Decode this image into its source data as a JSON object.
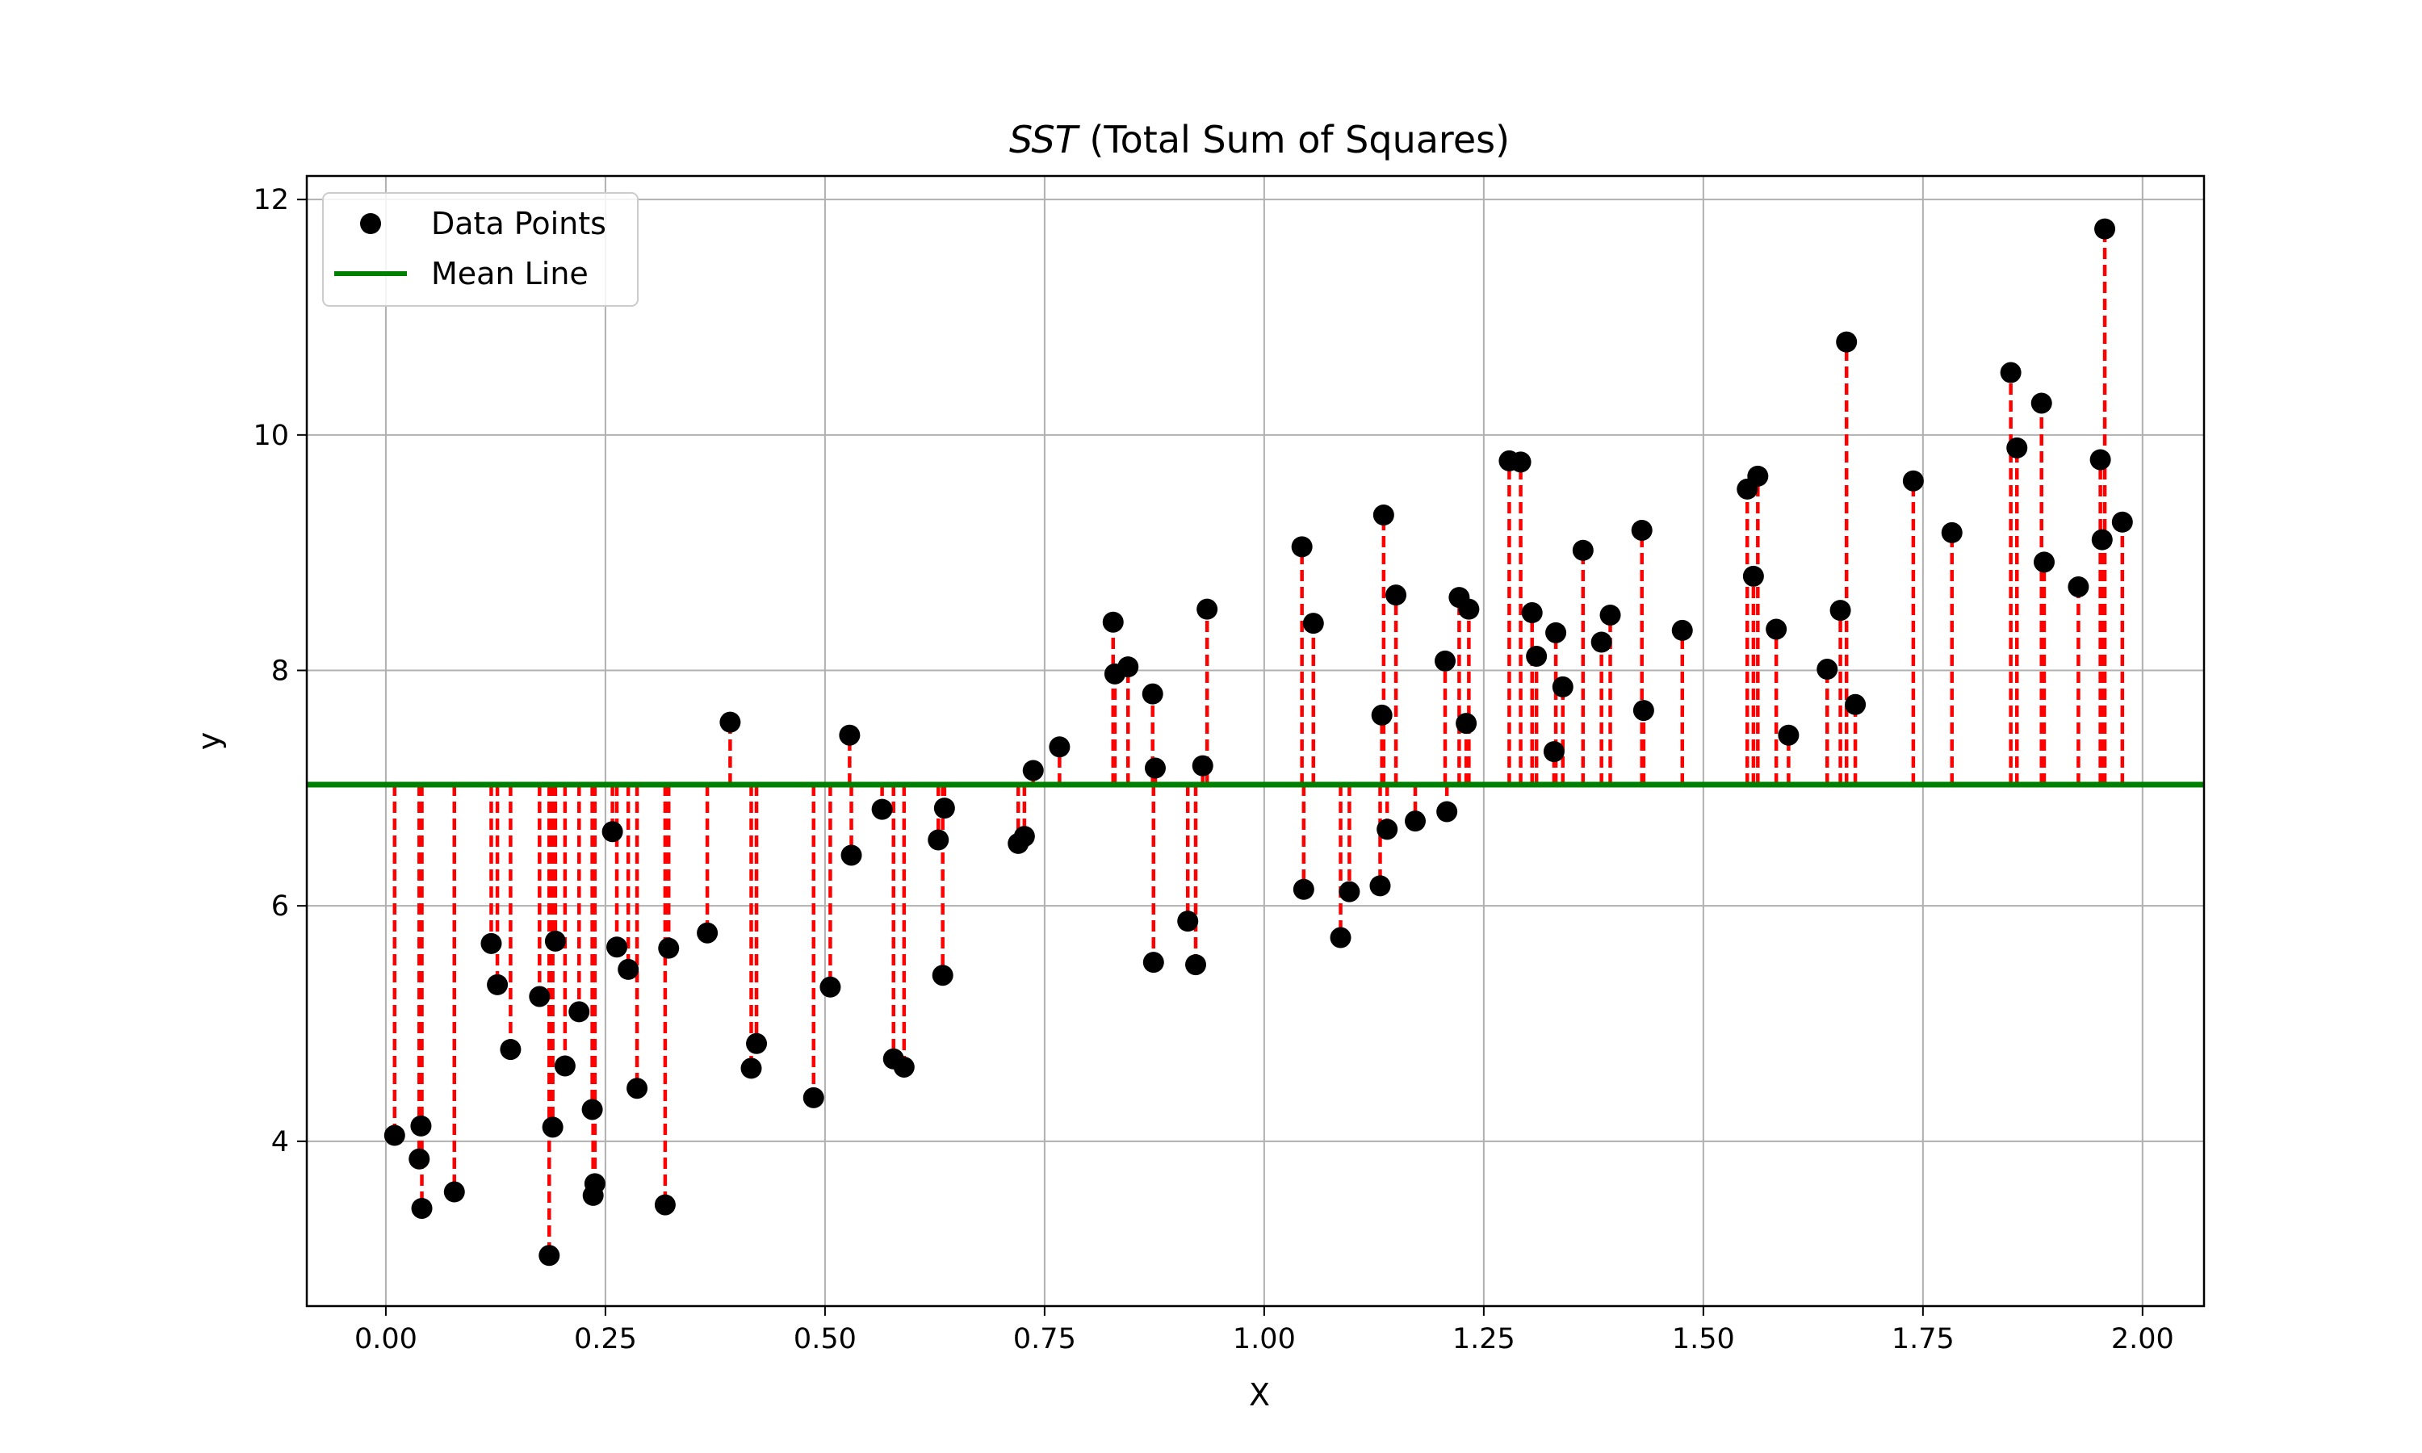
{
  "chart_data": {
    "type": "scatter",
    "title_italic": "SST",
    "title_rest": " (Total Sum of Squares)",
    "xlabel": "X",
    "ylabel": "y",
    "xlim": [
      -0.09,
      2.07
    ],
    "ylim": [
      2.6,
      12.2
    ],
    "xticks": [
      0.0,
      0.25,
      0.5,
      0.75,
      1.0,
      1.25,
      1.5,
      1.75,
      2.0
    ],
    "xtick_labels": [
      "0.00",
      "0.25",
      "0.50",
      "0.75",
      "1.00",
      "1.25",
      "1.50",
      "1.75",
      "2.00"
    ],
    "yticks": [
      4,
      6,
      8,
      10,
      12
    ],
    "ytick_labels": [
      "4",
      "6",
      "8",
      "10",
      "12"
    ],
    "grid": true,
    "legend_position": "top-left",
    "mean": 7.03,
    "colors": {
      "points": "#000000",
      "mean_line": "#008000",
      "residuals": "#ff0000"
    },
    "series": [
      {
        "name": "Data Points",
        "kind": "points"
      },
      {
        "name": "Mean Line",
        "kind": "line"
      }
    ],
    "points": [
      [
        0.01,
        4.05
      ],
      [
        0.038,
        3.85
      ],
      [
        0.04,
        4.13
      ],
      [
        0.041,
        3.43
      ],
      [
        0.078,
        3.57
      ],
      [
        0.12,
        5.68
      ],
      [
        0.127,
        5.33
      ],
      [
        0.142,
        4.78
      ],
      [
        0.175,
        5.23
      ],
      [
        0.186,
        3.03
      ],
      [
        0.19,
        4.12
      ],
      [
        0.193,
        5.7
      ],
      [
        0.204,
        4.64
      ],
      [
        0.22,
        5.1
      ],
      [
        0.235,
        4.27
      ],
      [
        0.236,
        3.54
      ],
      [
        0.238,
        3.64
      ],
      [
        0.258,
        6.63
      ],
      [
        0.263,
        5.65
      ],
      [
        0.276,
        5.46
      ],
      [
        0.286,
        4.45
      ],
      [
        0.318,
        3.46
      ],
      [
        0.322,
        5.64
      ],
      [
        0.366,
        5.77
      ],
      [
        0.392,
        7.56
      ],
      [
        0.416,
        4.62
      ],
      [
        0.422,
        4.83
      ],
      [
        0.487,
        4.37
      ],
      [
        0.506,
        5.31
      ],
      [
        0.528,
        7.45
      ],
      [
        0.53,
        6.43
      ],
      [
        0.565,
        6.82
      ],
      [
        0.578,
        4.7
      ],
      [
        0.59,
        4.63
      ],
      [
        0.629,
        6.56
      ],
      [
        0.634,
        5.41
      ],
      [
        0.636,
        6.83
      ],
      [
        0.72,
        6.53
      ],
      [
        0.727,
        6.59
      ],
      [
        0.737,
        7.15
      ],
      [
        0.767,
        7.35
      ],
      [
        0.828,
        8.41
      ],
      [
        0.83,
        7.97
      ],
      [
        0.845,
        8.03
      ],
      [
        0.873,
        7.8
      ],
      [
        0.874,
        5.52
      ],
      [
        0.876,
        7.17
      ],
      [
        0.913,
        5.87
      ],
      [
        0.922,
        5.5
      ],
      [
        0.93,
        7.19
      ],
      [
        0.935,
        8.52
      ],
      [
        1.043,
        9.05
      ],
      [
        1.045,
        6.14
      ],
      [
        1.056,
        8.4
      ],
      [
        1.087,
        5.73
      ],
      [
        1.097,
        6.12
      ],
      [
        1.132,
        6.17
      ],
      [
        1.134,
        7.62
      ],
      [
        1.136,
        9.32
      ],
      [
        1.14,
        6.65
      ],
      [
        1.15,
        8.64
      ],
      [
        1.172,
        6.72
      ],
      [
        1.206,
        8.08
      ],
      [
        1.208,
        6.8
      ],
      [
        1.222,
        8.62
      ],
      [
        1.23,
        7.55
      ],
      [
        1.233,
        8.52
      ],
      [
        1.279,
        9.78
      ],
      [
        1.292,
        9.77
      ],
      [
        1.305,
        8.49
      ],
      [
        1.31,
        8.12
      ],
      [
        1.33,
        7.31
      ],
      [
        1.332,
        8.32
      ],
      [
        1.34,
        7.86
      ],
      [
        1.363,
        9.02
      ],
      [
        1.384,
        8.24
      ],
      [
        1.394,
        8.47
      ],
      [
        1.43,
        9.19
      ],
      [
        1.432,
        7.66
      ],
      [
        1.476,
        8.34
      ],
      [
        1.55,
        9.54
      ],
      [
        1.557,
        8.8
      ],
      [
        1.562,
        9.65
      ],
      [
        1.583,
        8.35
      ],
      [
        1.597,
        7.45
      ],
      [
        1.641,
        8.01
      ],
      [
        1.656,
        8.51
      ],
      [
        1.663,
        10.79
      ],
      [
        1.673,
        7.71
      ],
      [
        1.739,
        9.61
      ],
      [
        1.783,
        9.17
      ],
      [
        1.85,
        10.53
      ],
      [
        1.857,
        9.89
      ],
      [
        1.885,
        10.27
      ],
      [
        1.888,
        8.92
      ],
      [
        1.927,
        8.71
      ],
      [
        1.952,
        9.79
      ],
      [
        1.954,
        9.11
      ],
      [
        1.957,
        11.75
      ],
      [
        1.977,
        9.26
      ]
    ]
  }
}
